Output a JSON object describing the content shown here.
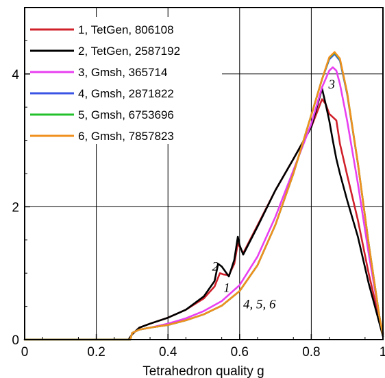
{
  "chart_data": {
    "type": "line",
    "xlabel": "Tetrahedron quality g",
    "ylabel": "",
    "xlim": [
      0,
      1
    ],
    "ylim": [
      0,
      5
    ],
    "xticks": [
      0,
      0.2,
      0.4,
      0.6,
      0.8,
      1
    ],
    "xtick_labels": [
      "0",
      "0.2",
      "0.4",
      "0.6",
      "0.8",
      "1"
    ],
    "yticks": [
      0,
      2,
      4
    ],
    "ytick_labels": [
      "0",
      "2",
      "4"
    ],
    "grid": true,
    "legend_position": "top-left",
    "annotations": [
      {
        "text": "1",
        "x": 0.555,
        "y": 0.72
      },
      {
        "text": "2",
        "x": 0.523,
        "y": 1.04
      },
      {
        "text": "3",
        "x": 0.848,
        "y": 3.78
      },
      {
        "text": "4, 5, 6",
        "x": 0.61,
        "y": 0.47
      }
    ],
    "series": [
      {
        "name": "1, TetGen, 806108",
        "color": "#d0202a",
        "x": [
          0,
          0.29,
          0.3,
          0.32,
          0.35,
          0.4,
          0.45,
          0.5,
          0.53,
          0.545,
          0.555,
          0.57,
          0.585,
          0.595,
          0.61,
          0.65,
          0.7,
          0.75,
          0.8,
          0.83,
          0.84,
          0.85,
          0.86,
          0.87,
          0.88,
          0.9,
          0.93,
          0.96,
          0.99,
          1.0
        ],
        "y": [
          0,
          0,
          0.08,
          0.18,
          0.24,
          0.33,
          0.45,
          0.62,
          0.8,
          1.0,
          0.98,
          0.97,
          1.14,
          1.45,
          1.3,
          1.72,
          2.25,
          2.72,
          3.2,
          3.62,
          3.55,
          3.4,
          3.35,
          3.3,
          2.95,
          2.48,
          1.8,
          1.0,
          0.3,
          0.1
        ]
      },
      {
        "name": "2, TetGen, 2587192",
        "color": "#000000",
        "x": [
          0,
          0.29,
          0.3,
          0.32,
          0.35,
          0.4,
          0.45,
          0.5,
          0.53,
          0.54,
          0.55,
          0.57,
          0.585,
          0.595,
          0.6,
          0.61,
          0.65,
          0.7,
          0.75,
          0.8,
          0.83,
          0.84,
          0.85,
          0.86,
          0.87,
          0.88,
          0.9,
          0.93,
          0.96,
          0.99,
          1.0
        ],
        "y": [
          0,
          0,
          0.08,
          0.18,
          0.24,
          0.33,
          0.45,
          0.65,
          0.88,
          1.14,
          1.1,
          0.95,
          1.2,
          1.55,
          1.42,
          1.28,
          1.7,
          2.25,
          2.72,
          3.2,
          3.78,
          3.55,
          3.3,
          3.0,
          2.72,
          2.5,
          2.1,
          1.55,
          0.85,
          0.25,
          0.05
        ]
      },
      {
        "name": "3, Gmsh,   365714",
        "color": "#e83ff0",
        "x": [
          0,
          0.295,
          0.3,
          0.32,
          0.35,
          0.4,
          0.45,
          0.5,
          0.55,
          0.6,
          0.65,
          0.7,
          0.75,
          0.8,
          0.83,
          0.85,
          0.86,
          0.87,
          0.88,
          0.9,
          0.93,
          0.96,
          0.99,
          1.0
        ],
        "y": [
          0,
          0,
          0.1,
          0.15,
          0.18,
          0.24,
          0.32,
          0.43,
          0.58,
          0.82,
          1.25,
          1.85,
          2.55,
          3.25,
          3.8,
          4.05,
          4.1,
          4.05,
          3.85,
          3.3,
          2.35,
          1.3,
          0.35,
          0.1
        ]
      },
      {
        "name": "4, Gmsh,   2871822",
        "color": "#3a55e6",
        "x": [
          0,
          0.295,
          0.3,
          0.32,
          0.35,
          0.4,
          0.45,
          0.5,
          0.55,
          0.6,
          0.65,
          0.7,
          0.75,
          0.8,
          0.83,
          0.85,
          0.865,
          0.88,
          0.9,
          0.93,
          0.96,
          0.99,
          1.0
        ],
        "y": [
          0,
          0,
          0.1,
          0.15,
          0.18,
          0.22,
          0.29,
          0.38,
          0.51,
          0.73,
          1.12,
          1.73,
          2.5,
          3.38,
          3.92,
          4.22,
          4.3,
          4.2,
          3.7,
          2.65,
          1.45,
          0.35,
          0.08
        ]
      },
      {
        "name": "5, Gmsh,   6753696",
        "color": "#22c02a",
        "x": [
          0,
          0.295,
          0.3,
          0.32,
          0.35,
          0.4,
          0.45,
          0.5,
          0.55,
          0.6,
          0.65,
          0.7,
          0.75,
          0.8,
          0.83,
          0.85,
          0.865,
          0.88,
          0.9,
          0.93,
          0.96,
          0.99,
          1.0
        ],
        "y": [
          0,
          0,
          0.1,
          0.15,
          0.18,
          0.22,
          0.29,
          0.38,
          0.51,
          0.73,
          1.12,
          1.73,
          2.5,
          3.38,
          3.92,
          4.24,
          4.32,
          4.22,
          3.72,
          2.66,
          1.45,
          0.35,
          0.08
        ]
      },
      {
        "name": "6, Gmsh,   7857823",
        "color": "#f0901e",
        "x": [
          0,
          0.295,
          0.3,
          0.32,
          0.35,
          0.4,
          0.45,
          0.5,
          0.55,
          0.6,
          0.65,
          0.7,
          0.75,
          0.8,
          0.83,
          0.85,
          0.865,
          0.88,
          0.9,
          0.93,
          0.96,
          0.99,
          1.0
        ],
        "y": [
          0,
          0,
          0.1,
          0.15,
          0.18,
          0.22,
          0.29,
          0.38,
          0.51,
          0.73,
          1.12,
          1.73,
          2.5,
          3.38,
          3.92,
          4.25,
          4.33,
          4.23,
          3.72,
          2.66,
          1.45,
          0.35,
          0.08
        ]
      }
    ]
  }
}
